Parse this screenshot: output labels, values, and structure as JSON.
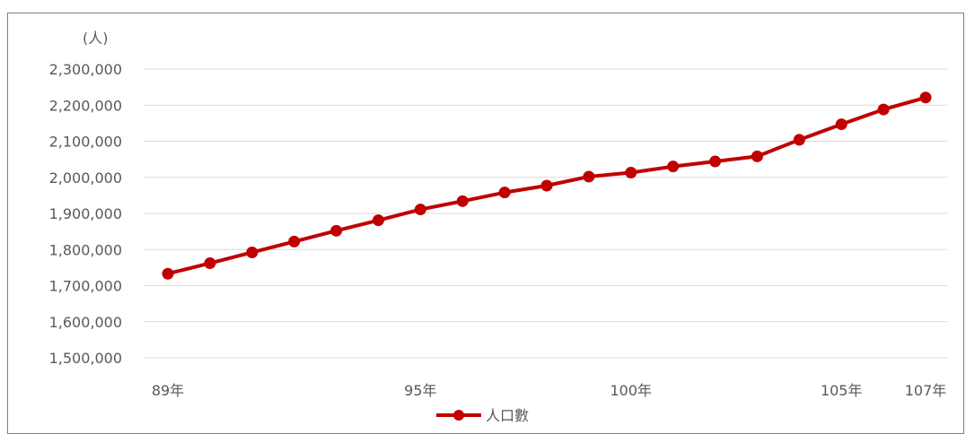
{
  "chart_data": {
    "type": "line",
    "yunit": "(人)",
    "ylim": [
      1500000,
      2300000
    ],
    "yticks": [
      "2,300,000",
      "2,200,000",
      "2,100,000",
      "2,000,000",
      "1,900,000",
      "1,800,000",
      "1,700,000",
      "1,600,000",
      "1,500,000"
    ],
    "ytick_values": [
      2300000,
      2200000,
      2100000,
      2000000,
      1900000,
      1800000,
      1700000,
      1600000,
      1500000
    ],
    "x": [
      89,
      90,
      91,
      92,
      93,
      94,
      95,
      96,
      97,
      98,
      99,
      100,
      101,
      102,
      103,
      104,
      105,
      106,
      107
    ],
    "xtick_labels": [
      {
        "x": 89,
        "label": "89年"
      },
      {
        "x": 95,
        "label": "95年"
      },
      {
        "x": 100,
        "label": "100年"
      },
      {
        "x": 105,
        "label": "105年"
      },
      {
        "x": 107,
        "label": "107年"
      }
    ],
    "series": [
      {
        "name": "人口數",
        "color": "#c00000",
        "values": [
          1733000,
          1762000,
          1792000,
          1822000,
          1852000,
          1881000,
          1911000,
          1934000,
          1958000,
          1977000,
          2002000,
          2013000,
          2030000,
          2044000,
          2058000,
          2104000,
          2147000,
          2188000,
          2221000
        ]
      }
    ],
    "grid": true,
    "legend": "bottom-center"
  }
}
